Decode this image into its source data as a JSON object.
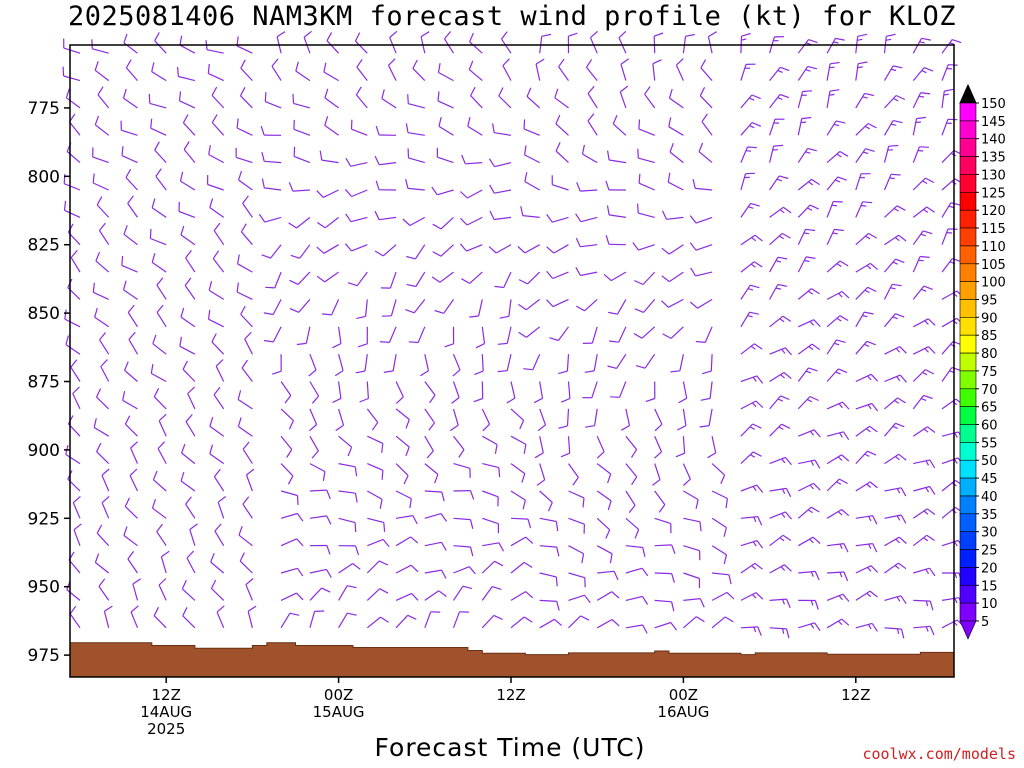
{
  "chart_data": {
    "type": "wind-barb-time-height",
    "title": "2025081406 NAM3KM forecast wind profile (kt) for KLOZ",
    "xlabel": "Forecast Time (UTC)",
    "credit": "coolwx.com/models",
    "ylim": [
      983,
      752
    ],
    "yticks": [
      775,
      800,
      825,
      850,
      875,
      900,
      925,
      950,
      975
    ],
    "forecast_hours": [
      0,
      60
    ],
    "hour_step": 2,
    "xticks": [
      {
        "hour": 6,
        "lines": [
          "12Z",
          "14AUG",
          "2025"
        ]
      },
      {
        "hour": 18,
        "lines": [
          "00Z",
          "15AUG"
        ]
      },
      {
        "hour": 30,
        "lines": [
          "12Z"
        ]
      },
      {
        "hour": 42,
        "lines": [
          "00Z",
          "16AUG"
        ]
      },
      {
        "hour": 54,
        "lines": [
          "12Z"
        ]
      }
    ],
    "levels_mb": [
      755,
      765,
      775,
      785,
      795,
      805,
      815,
      825,
      835,
      845,
      855,
      865,
      875,
      885,
      895,
      905,
      915,
      925,
      935,
      945,
      955,
      965,
      975
    ],
    "barb_color": "#8a2be2",
    "wind_regimes": [
      {
        "hours": [
          0,
          12
        ],
        "upper_dir_deg": 300,
        "lower_dir_deg": 330,
        "speed_kt": 10
      },
      {
        "hours": [
          12,
          30
        ],
        "upper_dir_deg": 330,
        "lower_dir_deg": 20,
        "speed_kt": 10
      },
      {
        "hours": [
          30,
          44
        ],
        "upper_dir_deg": 350,
        "lower_dir_deg": 50,
        "speed_kt": 10
      },
      {
        "hours": [
          44,
          60
        ],
        "upper_dir_deg": 20,
        "lower_dir_deg": 80,
        "speed_kt": 15
      }
    ],
    "surface_pressure_mb": [
      {
        "hour": 0,
        "mb": 970.5
      },
      {
        "hour": 5,
        "mb": 970.5
      },
      {
        "hour": 5,
        "mb": 971.5
      },
      {
        "hour": 8,
        "mb": 971.5
      },
      {
        "hour": 8,
        "mb": 972.5
      },
      {
        "hour": 12,
        "mb": 972.5
      },
      {
        "hour": 12,
        "mb": 971.5
      },
      {
        "hour": 13,
        "mb": 971.5
      },
      {
        "hour": 13,
        "mb": 970.5
      },
      {
        "hour": 15,
        "mb": 970.5
      },
      {
        "hour": 15,
        "mb": 971.5
      },
      {
        "hour": 19,
        "mb": 971.5
      },
      {
        "hour": 19,
        "mb": 972.2
      },
      {
        "hour": 27,
        "mb": 972.2
      },
      {
        "hour": 27,
        "mb": 973.3
      },
      {
        "hour": 28,
        "mb": 973.3
      },
      {
        "hour": 28,
        "mb": 974.3
      },
      {
        "hour": 31,
        "mb": 974.3
      },
      {
        "hour": 31,
        "mb": 974.8
      },
      {
        "hour": 34,
        "mb": 974.8
      },
      {
        "hour": 34,
        "mb": 974.2
      },
      {
        "hour": 40,
        "mb": 974.2
      },
      {
        "hour": 40,
        "mb": 973.5
      },
      {
        "hour": 41,
        "mb": 973.5
      },
      {
        "hour": 41,
        "mb": 974.3
      },
      {
        "hour": 46,
        "mb": 974.3
      },
      {
        "hour": 46,
        "mb": 974.8
      },
      {
        "hour": 47,
        "mb": 974.8
      },
      {
        "hour": 47,
        "mb": 974.2
      },
      {
        "hour": 52,
        "mb": 974.2
      },
      {
        "hour": 52,
        "mb": 974.7
      },
      {
        "hour": 58.5,
        "mb": 974.7
      },
      {
        "hour": 58.5,
        "mb": 974.0
      },
      {
        "hour": 60,
        "mb": 974.0
      }
    ],
    "surface_color": "#a0522d",
    "colorbar": {
      "labels": [
        150,
        145,
        140,
        135,
        130,
        125,
        120,
        115,
        110,
        105,
        100,
        95,
        90,
        85,
        80,
        75,
        70,
        65,
        60,
        55,
        50,
        45,
        40,
        35,
        30,
        25,
        20,
        15,
        10,
        5
      ],
      "colors": [
        "#ff00ff",
        "#ff00d0",
        "#ff0090",
        "#ff0060",
        "#ff0030",
        "#ff0000",
        "#ff2000",
        "#ff4000",
        "#ff6000",
        "#ff8000",
        "#ffa000",
        "#ffc000",
        "#ffe000",
        "#ffff00",
        "#c0ff00",
        "#80ff00",
        "#40ff00",
        "#00ff40",
        "#00ff90",
        "#00ffd0",
        "#00e0ff",
        "#00b0ff",
        "#0080ff",
        "#0060ff",
        "#0040ff",
        "#0020ff",
        "#2000ff",
        "#5000ff",
        "#8000ff"
      ]
    }
  }
}
